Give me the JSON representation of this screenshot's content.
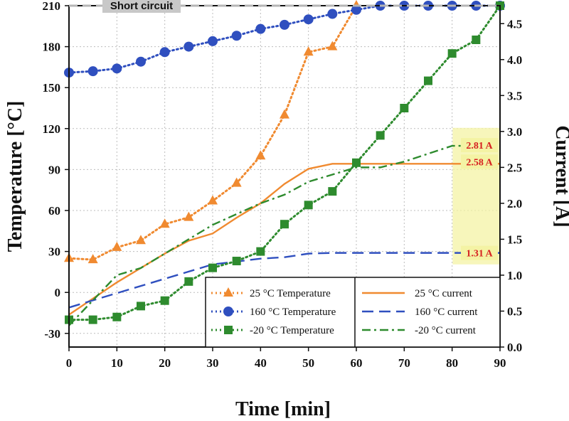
{
  "chart_data": {
    "type": "line",
    "xlabel": "Time [min]",
    "ylabel_left": "Temperature [°C]",
    "ylabel_right": "Current [A]",
    "xlim": [
      0,
      90
    ],
    "ylim_left": [
      -40,
      210
    ],
    "ylim_right": [
      0,
      4.75
    ],
    "x_ticks": [
      0,
      10,
      20,
      30,
      40,
      50,
      60,
      70,
      80,
      90
    ],
    "y_left_ticks": [
      -30,
      0,
      30,
      60,
      90,
      120,
      150,
      180,
      210
    ],
    "y_right_ticks": [
      0.0,
      0.5,
      1.0,
      1.5,
      2.0,
      2.5,
      3.0,
      3.5,
      4.0,
      4.5
    ],
    "grid": true,
    "legend_placement": "bottom-right",
    "temperature_series": [
      {
        "name": "25 °C Temperature",
        "color": "#F08A30",
        "marker": "triangle",
        "linestyle": "dotted",
        "x": [
          0,
          5,
          10,
          15,
          20,
          25,
          30,
          35,
          40,
          45,
          50,
          55,
          60
        ],
        "y": [
          25,
          24,
          33,
          38,
          50,
          55,
          67,
          80,
          100,
          130,
          176,
          180,
          210
        ]
      },
      {
        "name": "160 °C Temperature",
        "color": "#2F4FBF",
        "marker": "circle",
        "linestyle": "dotted",
        "x": [
          0,
          5,
          10,
          15,
          20,
          25,
          30,
          35,
          40,
          45,
          50,
          55,
          60,
          65,
          70,
          75,
          80,
          85,
          90
        ],
        "y": [
          161,
          162,
          164,
          169,
          176,
          180,
          184,
          188,
          193,
          196,
          200,
          204,
          207,
          210,
          210,
          210,
          210,
          210,
          210
        ]
      },
      {
        "name": "-20 °C Temperature",
        "color": "#2E8B2E",
        "marker": "square",
        "linestyle": "dotted",
        "x": [
          0,
          5,
          10,
          15,
          20,
          25,
          30,
          35,
          40,
          45,
          50,
          55,
          60,
          65,
          70,
          75,
          80,
          85,
          90
        ],
        "y": [
          -20,
          -20,
          -18,
          -10,
          -6,
          8,
          18,
          23,
          30,
          50,
          64,
          74,
          95,
          115,
          135,
          155,
          175,
          185,
          210
        ]
      }
    ],
    "current_series": [
      {
        "name": "25 °C current",
        "color": "#F08A30",
        "linestyle": "solid",
        "x": [
          0,
          10,
          20,
          25,
          30,
          35,
          40,
          45,
          50,
          55,
          60,
          70,
          80,
          90
        ],
        "y": [
          0.45,
          0.9,
          1.3,
          1.48,
          1.58,
          1.8,
          2.0,
          2.27,
          2.48,
          2.55,
          2.55,
          2.55,
          2.55,
          2.55
        ]
      },
      {
        "name": "160 °C current",
        "color": "#2F4FBF",
        "linestyle": "dashed",
        "x": [
          0,
          10,
          20,
          30,
          40,
          45,
          50,
          55,
          60,
          70,
          80,
          90
        ],
        "y": [
          0.55,
          0.75,
          0.95,
          1.15,
          1.23,
          1.25,
          1.3,
          1.31,
          1.31,
          1.31,
          1.31,
          1.31
        ]
      },
      {
        "name": "-20 °C current",
        "color": "#2E8B2E",
        "linestyle": "dashdot",
        "x": [
          0,
          10,
          15,
          20,
          30,
          40,
          45,
          50,
          55,
          60,
          65,
          70,
          80,
          90
        ],
        "y": [
          0.3,
          1.0,
          1.1,
          1.3,
          1.7,
          2.0,
          2.12,
          2.3,
          2.4,
          2.5,
          2.5,
          2.58,
          2.8,
          2.8
        ]
      }
    ],
    "annotations": {
      "short_circuit_label": "Short circuit",
      "short_circuit_temperature": 210,
      "current_labels": [
        {
          "text": "2.81 A",
          "value": 2.81
        },
        {
          "text": "2.58 A",
          "value": 2.58
        },
        {
          "text": "1.31 A",
          "value": 1.31
        }
      ],
      "highlight_x_range": [
        81,
        90
      ]
    }
  }
}
